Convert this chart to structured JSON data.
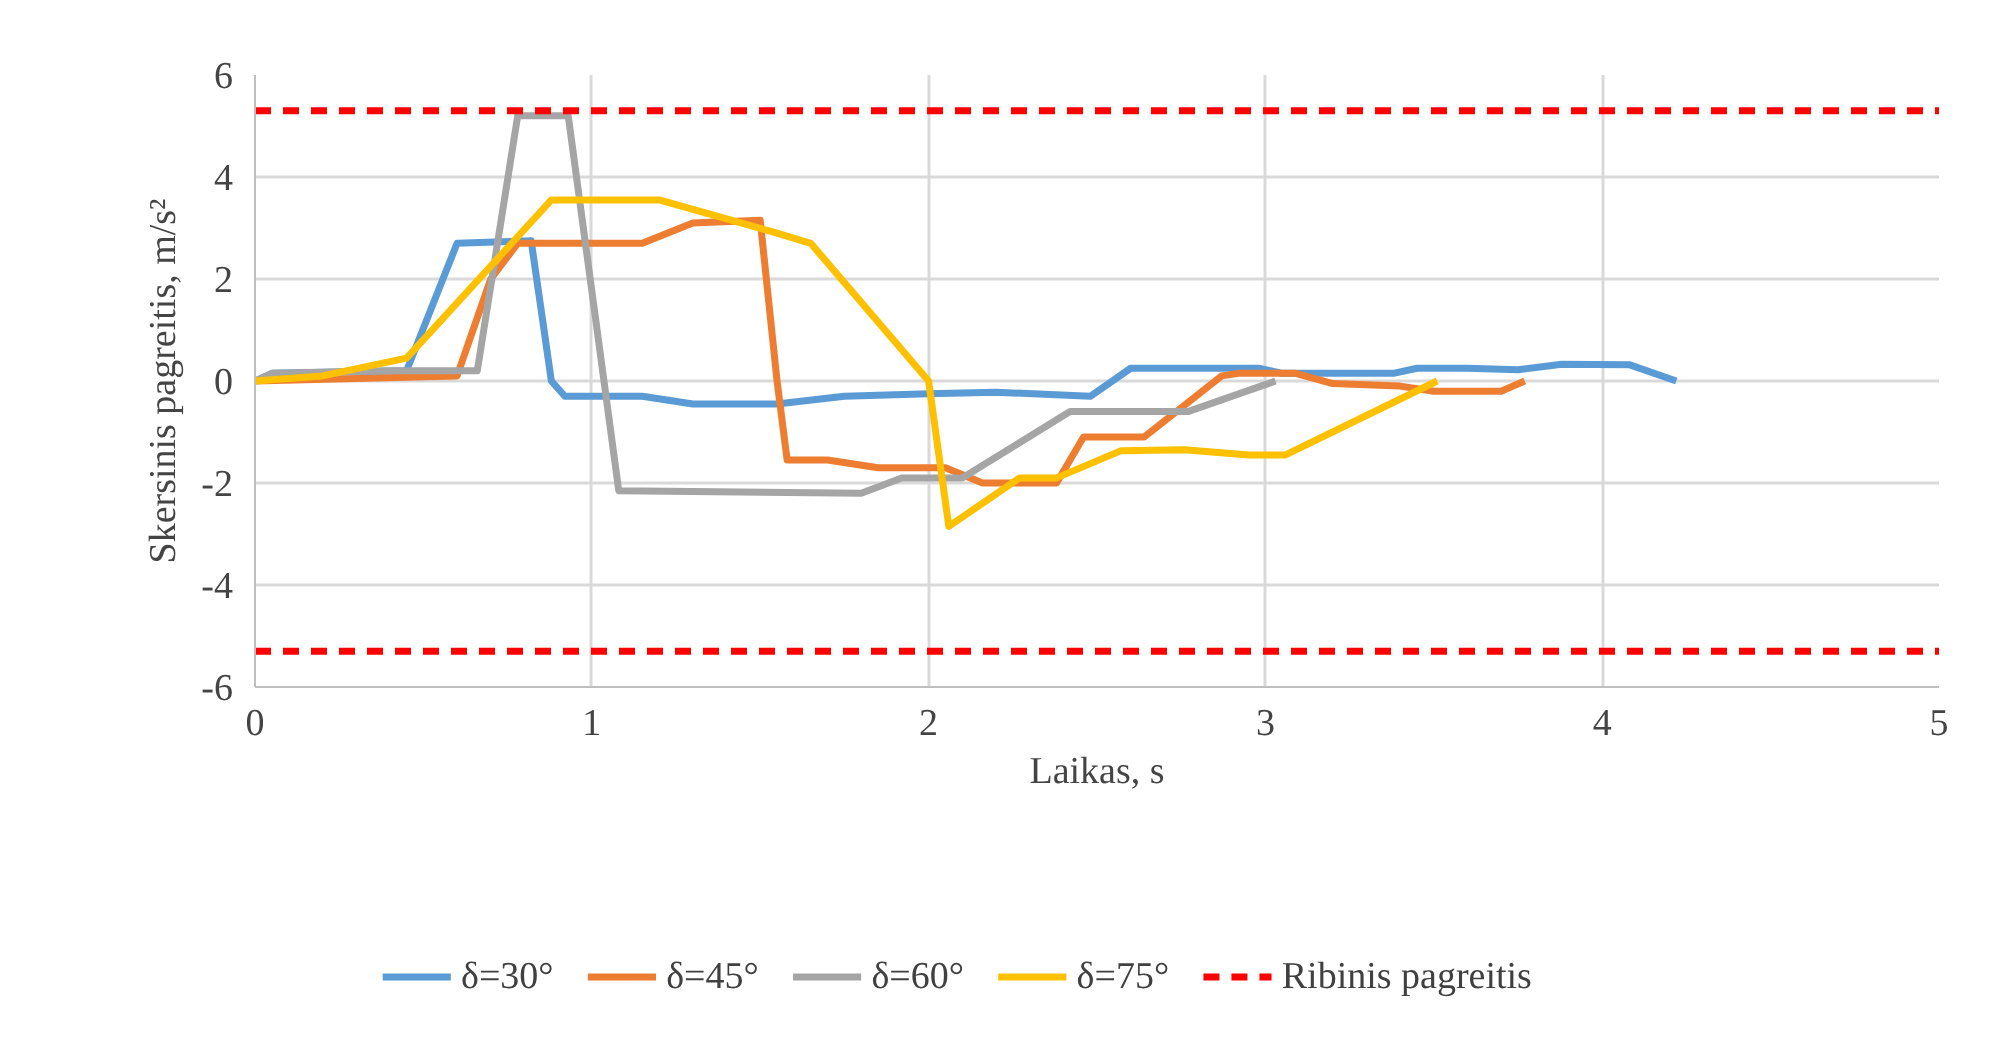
{
  "chart_data": {
    "type": "line",
    "xlabel": "Laikas, s",
    "ylabel": "Skersinis pagreitis, m/s²",
    "xlim": [
      0,
      5
    ],
    "xticks": [
      0,
      1,
      2,
      3,
      4,
      5
    ],
    "ylim": [
      -6,
      6
    ],
    "yticks": [
      -6,
      -4,
      -2,
      0,
      2,
      4,
      6
    ],
    "grid": true,
    "legend": "bottom",
    "line_style": "solid",
    "marker": "none",
    "series": [
      {
        "name": "δ=30°",
        "color": "#5b9bd5",
        "x": [
          0,
          0.05,
          0.45,
          0.6,
          0.82,
          0.88,
          0.92,
          1.15,
          1.3,
          1.55,
          1.75,
          2.0,
          2.2,
          2.48,
          2.6,
          2.98,
          3.05,
          3.38,
          3.45,
          3.6,
          3.75,
          3.88,
          4.08,
          4.22
        ],
        "values": [
          0,
          0.15,
          0.2,
          2.7,
          2.75,
          0,
          -0.3,
          -0.3,
          -0.45,
          -0.45,
          -0.3,
          -0.25,
          -0.22,
          -0.3,
          0.25,
          0.25,
          0.15,
          0.15,
          0.25,
          0.25,
          0.22,
          0.33,
          0.32,
          0
        ]
      },
      {
        "name": "δ=45°",
        "color": "#ed7d31",
        "x": [
          0,
          0.6,
          0.7,
          0.78,
          1.15,
          1.3,
          1.5,
          1.55,
          1.58,
          1.7,
          1.85,
          2.05,
          2.16,
          2.38,
          2.46,
          2.64,
          2.87,
          2.92,
          3.09,
          3.2,
          3.4,
          3.5,
          3.7,
          3.77
        ],
        "values": [
          0,
          0.1,
          2.0,
          2.7,
          2.7,
          3.1,
          3.15,
          0,
          -1.55,
          -1.55,
          -1.7,
          -1.7,
          -2.0,
          -2.0,
          -1.1,
          -1.1,
          0.1,
          0.15,
          0.15,
          -0.05,
          -0.1,
          -0.2,
          -0.2,
          0
        ]
      },
      {
        "name": "δ=60°",
        "color": "#a5a5a5",
        "x": [
          0,
          0.05,
          0.4,
          0.66,
          0.78,
          0.93,
          1.08,
          1.8,
          1.92,
          2.1,
          2.42,
          2.77,
          3.03
        ],
        "values": [
          0,
          0.15,
          0.2,
          0.2,
          5.2,
          5.2,
          -2.15,
          -2.2,
          -1.9,
          -1.9,
          -0.6,
          -0.6,
          0
        ]
      },
      {
        "name": "δ=75°",
        "color": "#ffc000",
        "x": [
          0,
          0.2,
          0.45,
          0.88,
          1.2,
          1.55,
          1.65,
          2.0,
          2.06,
          2.27,
          2.38,
          2.57,
          2.76,
          2.95,
          3.06,
          3.51
        ],
        "values": [
          0,
          0.1,
          0.45,
          3.55,
          3.55,
          2.9,
          2.7,
          0,
          -2.85,
          -1.9,
          -1.9,
          -1.37,
          -1.35,
          -1.45,
          -1.45,
          0
        ]
      }
    ],
    "ref_lines": [
      {
        "axis": "y",
        "value": 5.3,
        "label": "Ribinis pagreitis",
        "color": "#ff0000",
        "line_style": "dashed"
      },
      {
        "axis": "y",
        "value": -5.3,
        "color": "#ff0000",
        "line_style": "dashed"
      }
    ]
  }
}
